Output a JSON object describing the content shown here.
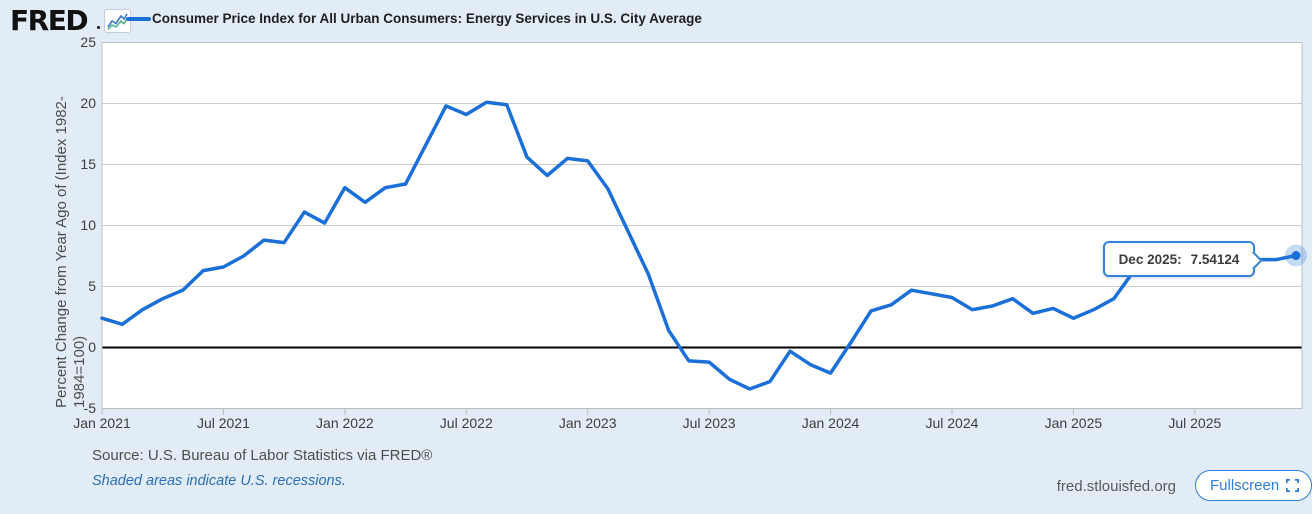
{
  "header": {
    "logo_text": "FRED",
    "title": "Consumer Price Index for All Urban Consumers: Energy Services in U.S. City Average"
  },
  "chart_data": {
    "type": "line",
    "title": "Consumer Price Index for All Urban Consumers: Energy Services in U.S. City Average",
    "xlabel": "",
    "ylabel": "Percent Change from Year Ago of (Index 1982-1984=100)",
    "ylabel_line1": "Percent Change from Year Ago of (Index 1982-",
    "ylabel_line2": "1984=100)",
    "ylim": [
      -5,
      25
    ],
    "yticks": [
      25,
      20,
      15,
      10,
      5,
      0,
      -5
    ],
    "yticklabels": [
      "25",
      "20",
      "15",
      "10",
      "5",
      "0",
      "-5"
    ],
    "xticklabels": [
      "Jan 2021",
      "Jul 2021",
      "Jan 2022",
      "Jul 2022",
      "Jan 2023",
      "Jul 2023",
      "Jan 2024",
      "Jul 2024",
      "Jan 2025",
      "Jul 2025"
    ],
    "x_range": [
      "Jan 2021",
      "Dec 2025"
    ],
    "grid": "horizontal",
    "legend_position": "top",
    "zero_line": true,
    "series": [
      {
        "name": "Consumer Price Index for All Urban Consumers: Energy Services in U.S. City Average",
        "color": "#1b6fd9",
        "x": [
          "Jan 2021",
          "Feb 2021",
          "Mar 2021",
          "Apr 2021",
          "May 2021",
          "Jun 2021",
          "Jul 2021",
          "Aug 2021",
          "Sep 2021",
          "Oct 2021",
          "Nov 2021",
          "Dec 2021",
          "Jan 2022",
          "Feb 2022",
          "Mar 2022",
          "Apr 2022",
          "May 2022",
          "Jun 2022",
          "Jul 2022",
          "Aug 2022",
          "Sep 2022",
          "Oct 2022",
          "Nov 2022",
          "Dec 2022",
          "Jan 2023",
          "Feb 2023",
          "Mar 2023",
          "Apr 2023",
          "May 2023",
          "Jun 2023",
          "Jul 2023",
          "Aug 2023",
          "Sep 2023",
          "Oct 2023",
          "Nov 2023",
          "Dec 2023",
          "Jan 2024",
          "Feb 2024",
          "Mar 2024",
          "Apr 2024",
          "May 2024",
          "Jun 2024",
          "Jul 2024",
          "Aug 2024",
          "Sep 2024",
          "Oct 2024",
          "Nov 2024",
          "Dec 2024",
          "Jan 2025",
          "Feb 2025",
          "Mar 2025",
          "Apr 2025",
          "May 2025",
          "Jun 2025",
          "Jul 2025",
          "Aug 2025",
          "Sep 2025",
          "Oct 2025",
          "Nov 2025",
          "Dec 2025"
        ],
        "values": [
          2.4,
          1.9,
          3.1,
          4.0,
          4.7,
          6.3,
          6.6,
          7.5,
          8.8,
          8.6,
          11.1,
          10.2,
          13.1,
          11.9,
          13.1,
          13.4,
          16.6,
          19.8,
          19.1,
          20.1,
          19.9,
          15.6,
          14.1,
          15.5,
          15.3,
          13.0,
          9.5,
          6.0,
          1.4,
          -1.1,
          -1.2,
          -2.6,
          -3.4,
          -2.8,
          -0.3,
          -1.4,
          -2.1,
          0.4,
          3.0,
          3.5,
          4.7,
          4.4,
          4.1,
          3.1,
          3.4,
          4.0,
          2.8,
          3.2,
          2.4,
          3.1,
          4.0,
          6.3,
          6.8,
          7.0,
          7.1,
          7.15,
          7.2,
          7.2,
          7.2,
          7.54124
        ]
      }
    ],
    "highlight_point": {
      "x": "Dec 2025",
      "value": 7.54124
    },
    "tooltip": {
      "label": "Dec 2025:",
      "value": "7.54124"
    }
  },
  "footer": {
    "source": "Source: U.S. Bureau of Labor Statistics via FRED®",
    "recessions_note": "Shaded areas indicate U.S. recessions.",
    "url": "fred.stlouisfed.org",
    "fullscreen_label": "Fullscreen"
  },
  "colors": {
    "background": "#e2ecf7",
    "plot_background": "#ffffff",
    "line": "#1b6fd9",
    "grid": "#cccccc",
    "zero_line": "#000000",
    "tooltip_border": "#3584d6",
    "link_blue": "#2a6fb5",
    "fullscreen_blue": "#2f7ed8"
  }
}
